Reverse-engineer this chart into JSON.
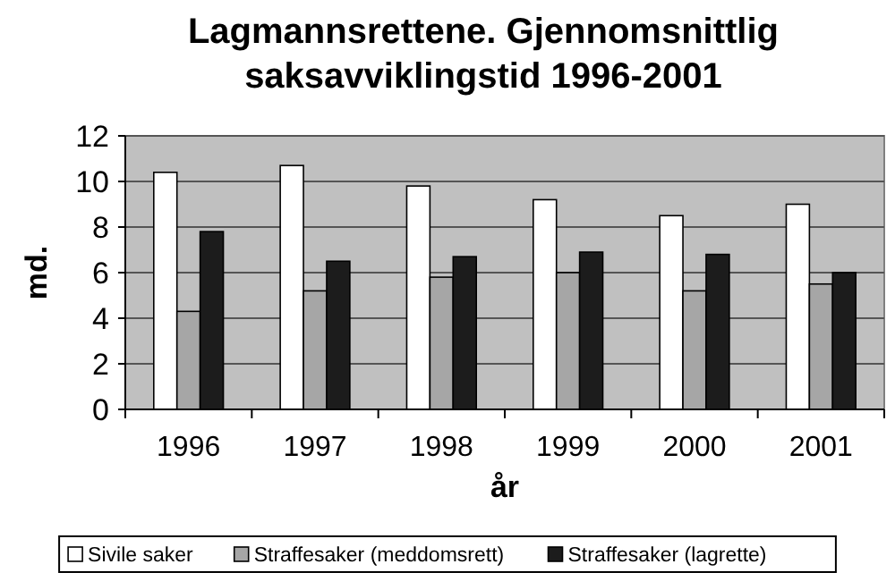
{
  "chart_data": {
    "type": "bar",
    "title": "Lagmannsrettene. Gjennomsnittlig saksavviklingstid 1996-2001",
    "xlabel": "år",
    "ylabel": "md.",
    "categories": [
      "1996",
      "1997",
      "1998",
      "1999",
      "2000",
      "2001"
    ],
    "series": [
      {
        "name": "Sivile saker",
        "color": "#ffffff",
        "values": [
          10.4,
          10.7,
          9.8,
          9.2,
          8.5,
          9.0
        ]
      },
      {
        "name": "Straffesaker (meddomsrett)",
        "color": "#a6a6a6",
        "values": [
          4.3,
          5.2,
          5.8,
          6.0,
          5.2,
          5.5
        ]
      },
      {
        "name": "Straffesaker (lagrette)",
        "color": "#1c1c1c",
        "values": [
          7.8,
          6.5,
          6.7,
          6.9,
          6.8,
          6.0
        ]
      }
    ],
    "ylim": [
      0,
      12
    ],
    "yticks": [
      0,
      2,
      4,
      6,
      8,
      10,
      12
    ],
    "grid": "y",
    "legend": "bottom"
  }
}
